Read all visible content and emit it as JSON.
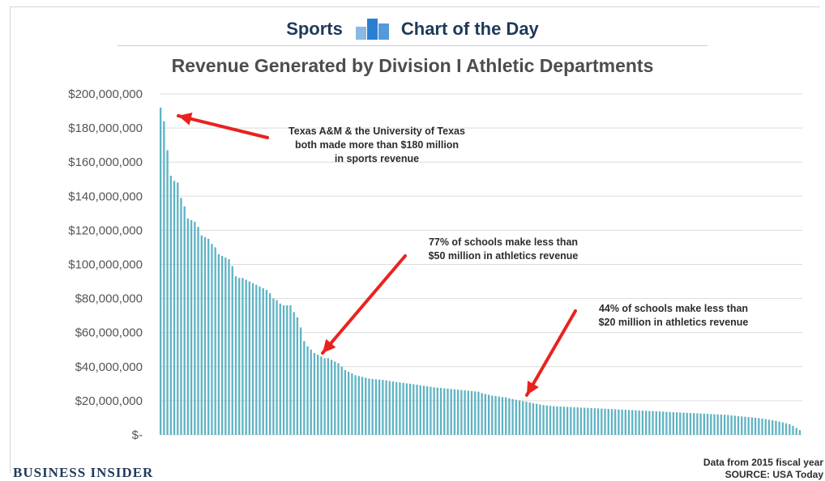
{
  "header": {
    "left_label": "Sports",
    "right_label": "Chart of the Day",
    "logo_icon": "bar-logo-icon",
    "accent_color": "#2b7fd0"
  },
  "brand": "BUSINESS INSIDER",
  "footnote": {
    "line1": "Data from 2015 fiscal year",
    "line2": "SOURCE: USA Today"
  },
  "annotations": [
    {
      "line1": "Texas A&M & the University of Texas",
      "line2": "both made more than $180 million",
      "line3": "in sports revenue"
    },
    {
      "line1": "77% of schools make less than",
      "line2": "$50 million in athletics revenue"
    },
    {
      "line1": "44% of schools make less than",
      "line2": "$20 million in athletics revenue"
    }
  ],
  "chart_data": {
    "type": "bar",
    "title": "Revenue Generated by Division I Athletic Departments",
    "xlabel": "",
    "ylabel": "",
    "ylim": [
      0,
      200000000
    ],
    "y_tick_labels": [
      "$-",
      "$20,000,000",
      "$40,000,000",
      "$60,000,000",
      "$80,000,000",
      "$100,000,000",
      "$120,000,000",
      "$140,000,000",
      "$160,000,000",
      "$180,000,000",
      "$200,000,000"
    ],
    "grid": true,
    "bar_color": "#5fb3c4",
    "arrow_color": "#e8231f",
    "values": [
      192000000,
      184000000,
      167000000,
      152000000,
      149000000,
      148000000,
      139000000,
      134000000,
      127000000,
      126000000,
      125000000,
      122000000,
      117000000,
      116000000,
      115000000,
      112000000,
      110000000,
      106000000,
      105000000,
      104000000,
      103000000,
      99000000,
      93000000,
      92000000,
      92000000,
      91000000,
      90000000,
      89000000,
      88000000,
      87000000,
      86000000,
      85000000,
      83000000,
      80000000,
      79000000,
      77000000,
      76000000,
      76000000,
      76000000,
      72000000,
      69000000,
      63000000,
      55000000,
      52000000,
      50000000,
      48000000,
      47000000,
      46000000,
      45000000,
      45000000,
      44000000,
      43000000,
      42000000,
      40000000,
      38000000,
      37000000,
      36000000,
      35000000,
      34500000,
      34000000,
      33500000,
      33000000,
      32800000,
      32600000,
      32400000,
      32200000,
      32000000,
      31600000,
      31300000,
      31000000,
      30800000,
      30500000,
      30200000,
      30000000,
      29700000,
      29400000,
      29100000,
      28800000,
      28500000,
      28200000,
      27900000,
      27700000,
      27500000,
      27300000,
      27100000,
      26900000,
      26700000,
      26500000,
      26300000,
      26100000,
      25900000,
      25700000,
      25500000,
      25300000,
      24500000,
      24000000,
      23500000,
      23000000,
      22800000,
      22500000,
      22200000,
      22000000,
      21500000,
      21000000,
      20600000,
      20200000,
      19800000,
      19400000,
      19000000,
      18600000,
      18200000,
      17800000,
      17500000,
      17200000,
      17000000,
      16800000,
      16700000,
      16600000,
      16500000,
      16400000,
      16300000,
      16200000,
      16100000,
      16000000,
      15900000,
      15800000,
      15700000,
      15600000,
      15500000,
      15400000,
      15300000,
      15200000,
      15100000,
      15000000,
      14900000,
      14800000,
      14700000,
      14600000,
      14500000,
      14400000,
      14300000,
      14200000,
      14100000,
      14000000,
      13900000,
      13800000,
      13700000,
      13600000,
      13500000,
      13400000,
      13300000,
      13200000,
      13100000,
      13000000,
      12900000,
      12800000,
      12700000,
      12600000,
      12500000,
      12400000,
      12300000,
      12200000,
      12100000,
      12000000,
      11900000,
      11800000,
      11600000,
      11400000,
      11200000,
      11000000,
      10800000,
      10600000,
      10400000,
      10200000,
      10000000,
      9800000,
      9500000,
      9200000,
      8900000,
      8600000,
      8200000,
      7800000,
      7300000,
      6800000,
      6200000,
      5300000,
      4000000,
      2800000
    ]
  }
}
